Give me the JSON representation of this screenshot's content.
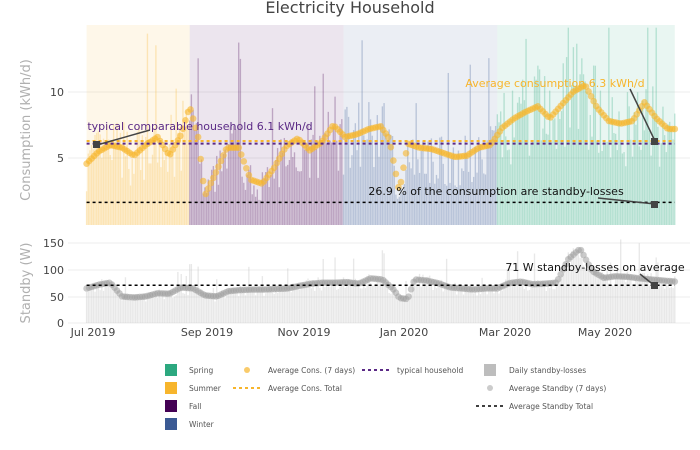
{
  "colors": {
    "spring": "#2ca87f",
    "summer": "#f7b52c",
    "fall": "#440154",
    "winter": "#3b5a94",
    "avg_cons": "#f7b52c",
    "typical": "#5b2a86",
    "standby_bar": "#bdbdbd",
    "standby_avg": "#9e9e9e",
    "marker": "#444444",
    "axis_label": "#b0b0b0",
    "standby_annotation": "#111111"
  },
  "chart_data": [
    {
      "type": "bar",
      "title": "Electricity Household",
      "ylabel": "Consumption (kWh/d)",
      "ylim": [
        0,
        15
      ],
      "yticks": [
        5,
        10
      ],
      "xticks": [
        "Jul 2019",
        "Sep 2019",
        "Nov 2019",
        "Jan 2020",
        "Mar 2020",
        "May 2020"
      ],
      "x_range": [
        "2019-06-21",
        "2020-06-23"
      ],
      "data_range": [
        "2019-07-02",
        "2020-06-14"
      ],
      "seasons": [
        {
          "name": "Summer",
          "from": "2019-07-02",
          "to": "2019-09-01",
          "color": "#f7b52c"
        },
        {
          "name": "Fall",
          "from": "2019-09-01",
          "to": "2019-12-01",
          "color": "#440154"
        },
        {
          "name": "Winter",
          "from": "2019-12-01",
          "to": "2020-03-01",
          "color": "#3b5a94"
        },
        {
          "name": "Spring",
          "from": "2020-03-01",
          "to": "2020-06-14",
          "color": "#2ca87f"
        }
      ],
      "weekly_avg": [
        {
          "x": "2019-07-02",
          "y": 4.6
        },
        {
          "x": "2019-07-09",
          "y": 5.5
        },
        {
          "x": "2019-07-16",
          "y": 6.0
        },
        {
          "x": "2019-07-23",
          "y": 5.8
        },
        {
          "x": "2019-07-30",
          "y": 5.2
        },
        {
          "x": "2019-08-06",
          "y": 6.0
        },
        {
          "x": "2019-08-13",
          "y": 6.6
        },
        {
          "x": "2019-08-20",
          "y": 5.2
        },
        {
          "x": "2019-08-27",
          "y": 6.8
        },
        {
          "x": "2019-09-01",
          "y": 8.9
        },
        {
          "x": "2019-09-06",
          "y": 6.6
        },
        {
          "x": "2019-09-10",
          "y": 2.2
        },
        {
          "x": "2019-09-16",
          "y": 3.8
        },
        {
          "x": "2019-09-23",
          "y": 5.8
        },
        {
          "x": "2019-09-30",
          "y": 5.8
        },
        {
          "x": "2019-10-07",
          "y": 3.4
        },
        {
          "x": "2019-10-14",
          "y": 3.1
        },
        {
          "x": "2019-10-21",
          "y": 4.3
        },
        {
          "x": "2019-10-28",
          "y": 5.9
        },
        {
          "x": "2019-11-04",
          "y": 6.5
        },
        {
          "x": "2019-11-11",
          "y": 5.6
        },
        {
          "x": "2019-11-18",
          "y": 6.2
        },
        {
          "x": "2019-11-25",
          "y": 7.5
        },
        {
          "x": "2019-12-02",
          "y": 6.6
        },
        {
          "x": "2019-12-09",
          "y": 6.8
        },
        {
          "x": "2019-12-16",
          "y": 7.2
        },
        {
          "x": "2019-12-23",
          "y": 7.4
        },
        {
          "x": "2019-12-28",
          "y": 6.5
        },
        {
          "x": "2020-01-03",
          "y": 2.5
        },
        {
          "x": "2020-01-08",
          "y": 6.1
        },
        {
          "x": "2020-01-15",
          "y": 5.8
        },
        {
          "x": "2020-01-22",
          "y": 5.7
        },
        {
          "x": "2020-01-29",
          "y": 5.4
        },
        {
          "x": "2020-02-05",
          "y": 5.1
        },
        {
          "x": "2020-02-12",
          "y": 5.2
        },
        {
          "x": "2020-02-19",
          "y": 5.8
        },
        {
          "x": "2020-02-26",
          "y": 6.0
        },
        {
          "x": "2020-03-04",
          "y": 7.3
        },
        {
          "x": "2020-03-11",
          "y": 8.0
        },
        {
          "x": "2020-03-18",
          "y": 8.5
        },
        {
          "x": "2020-03-25",
          "y": 8.9
        },
        {
          "x": "2020-04-01",
          "y": 8.0
        },
        {
          "x": "2020-04-08",
          "y": 9.0
        },
        {
          "x": "2020-04-15",
          "y": 10.0
        },
        {
          "x": "2020-04-22",
          "y": 10.5
        },
        {
          "x": "2020-04-29",
          "y": 8.8
        },
        {
          "x": "2020-05-06",
          "y": 7.8
        },
        {
          "x": "2020-05-13",
          "y": 7.6
        },
        {
          "x": "2020-05-20",
          "y": 7.8
        },
        {
          "x": "2020-05-27",
          "y": 9.2
        },
        {
          "x": "2020-06-03",
          "y": 8.0
        },
        {
          "x": "2020-06-10",
          "y": 7.2
        }
      ],
      "avg_total": 6.3,
      "typical": 6.1,
      "standby_share_level": 1.7,
      "annotations": [
        {
          "text": "Average consumption 6.3 kWh/d",
          "color": "#f7b52c",
          "x": "2020-06-14",
          "y": 6.3
        },
        {
          "text": "typical comparable household 6.1 kWh/d",
          "color": "#5b2a86",
          "x": "2019-07-02",
          "y": 6.1
        },
        {
          "text": "26.9 % of the consumption are standby-losses",
          "color": "#111111",
          "x": "2020-06-14",
          "y": 1.7
        }
      ]
    },
    {
      "type": "bar",
      "ylabel": "Standby (W)",
      "ylim": [
        0,
        160
      ],
      "yticks": [
        0,
        50,
        100,
        150
      ],
      "weekly_avg": [
        {
          "x": "2019-07-02",
          "y": 65
        },
        {
          "x": "2019-07-09",
          "y": 72
        },
        {
          "x": "2019-07-16",
          "y": 76
        },
        {
          "x": "2019-07-23",
          "y": 50
        },
        {
          "x": "2019-07-30",
          "y": 48
        },
        {
          "x": "2019-08-06",
          "y": 50
        },
        {
          "x": "2019-08-13",
          "y": 56
        },
        {
          "x": "2019-08-20",
          "y": 55
        },
        {
          "x": "2019-08-27",
          "y": 67
        },
        {
          "x": "2019-09-03",
          "y": 65
        },
        {
          "x": "2019-09-10",
          "y": 52
        },
        {
          "x": "2019-09-17",
          "y": 50
        },
        {
          "x": "2019-09-24",
          "y": 60
        },
        {
          "x": "2019-10-01",
          "y": 62
        },
        {
          "x": "2019-10-08",
          "y": 63
        },
        {
          "x": "2019-10-15",
          "y": 63
        },
        {
          "x": "2019-10-22",
          "y": 64
        },
        {
          "x": "2019-10-29",
          "y": 65
        },
        {
          "x": "2019-11-05",
          "y": 70
        },
        {
          "x": "2019-11-12",
          "y": 74
        },
        {
          "x": "2019-11-19",
          "y": 76
        },
        {
          "x": "2019-11-26",
          "y": 76
        },
        {
          "x": "2019-12-03",
          "y": 77
        },
        {
          "x": "2019-12-10",
          "y": 74
        },
        {
          "x": "2019-12-17",
          "y": 84
        },
        {
          "x": "2019-12-24",
          "y": 82
        },
        {
          "x": "2019-12-31",
          "y": 62
        },
        {
          "x": "2020-01-03",
          "y": 47
        },
        {
          "x": "2020-01-08",
          "y": 45
        },
        {
          "x": "2020-01-12",
          "y": 82
        },
        {
          "x": "2020-01-19",
          "y": 80
        },
        {
          "x": "2020-01-26",
          "y": 75
        },
        {
          "x": "2020-02-02",
          "y": 67
        },
        {
          "x": "2020-02-09",
          "y": 65
        },
        {
          "x": "2020-02-16",
          "y": 63
        },
        {
          "x": "2020-02-23",
          "y": 65
        },
        {
          "x": "2020-03-01",
          "y": 65
        },
        {
          "x": "2020-03-08",
          "y": 75
        },
        {
          "x": "2020-03-15",
          "y": 78
        },
        {
          "x": "2020-03-22",
          "y": 73
        },
        {
          "x": "2020-03-29",
          "y": 74
        },
        {
          "x": "2020-04-05",
          "y": 76
        },
        {
          "x": "2020-04-12",
          "y": 120
        },
        {
          "x": "2020-04-19",
          "y": 140
        },
        {
          "x": "2020-04-26",
          "y": 98
        },
        {
          "x": "2020-05-03",
          "y": 85
        },
        {
          "x": "2020-05-10",
          "y": 88
        },
        {
          "x": "2020-05-17",
          "y": 87
        },
        {
          "x": "2020-05-24",
          "y": 84
        },
        {
          "x": "2020-05-31",
          "y": 82
        },
        {
          "x": "2020-06-07",
          "y": 80
        },
        {
          "x": "2020-06-14",
          "y": 78
        }
      ],
      "avg_total": 71,
      "annotations": [
        {
          "text": "71 W standby-losses on average",
          "color": "#111111",
          "x": "2020-06-14",
          "y": 71
        }
      ]
    }
  ],
  "legend": {
    "col1": [
      "Spring",
      "Summer",
      "Fall",
      "Winter"
    ],
    "col2": [
      "Average Cons. (7 days)",
      "Average Cons. Total"
    ],
    "col3": [
      "typical household"
    ],
    "col4": [
      "Daily standby-losses",
      "Average Standby (7 days)",
      "Average Standby Total"
    ]
  }
}
